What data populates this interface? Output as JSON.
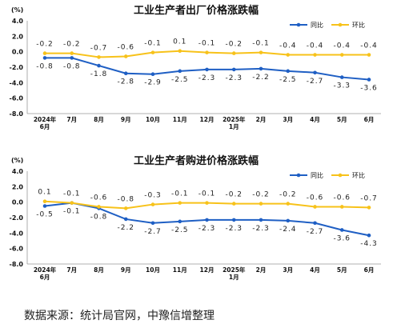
{
  "chart_data": [
    {
      "type": "line",
      "title": "工业生产者出厂价格涨跌幅",
      "unit_label": "(%)",
      "categories": [
        [
          "2024年",
          "6月"
        ],
        [
          "7月"
        ],
        [
          "8月"
        ],
        [
          "9月"
        ],
        [
          "10月"
        ],
        [
          "11月"
        ],
        [
          "12月"
        ],
        [
          "2025年",
          "1月"
        ],
        [
          "2月"
        ],
        [
          "3月"
        ],
        [
          "4月"
        ],
        [
          "5月"
        ],
        [
          "6月"
        ]
      ],
      "ylim": [
        -8.0,
        4.0
      ],
      "yticks": [
        "4.0",
        "2.0",
        "0.0",
        "-2.0",
        "-4.0",
        "-6.0",
        "-8.0"
      ],
      "series": [
        {
          "name": "同比",
          "color": "#1f5fc4",
          "values": [
            -0.8,
            -0.8,
            -1.8,
            -2.8,
            -2.9,
            -2.5,
            -2.3,
            -2.3,
            -2.2,
            -2.5,
            -2.7,
            -3.3,
            -3.6
          ],
          "labels": [
            "-0.8",
            "-0.8",
            "-1.8",
            "-2.8",
            "-2.9",
            "-2.5",
            "-2.3",
            "-2.3",
            "-2.2",
            "-2.5",
            "-2.7",
            "-3.3",
            "-3.6"
          ]
        },
        {
          "name": "环比",
          "color": "#f7c21a",
          "values": [
            -0.2,
            -0.2,
            -0.7,
            -0.6,
            -0.1,
            0.1,
            -0.1,
            -0.2,
            -0.1,
            -0.4,
            -0.4,
            -0.4,
            -0.4
          ],
          "labels": [
            "-0.2",
            "-0.2",
            "-0.7",
            "-0.6",
            "-0.1",
            "0.1",
            "-0.1",
            "-0.2",
            "-0.1",
            "-0.4",
            "-0.4",
            "-0.4",
            "-0.4"
          ]
        }
      ],
      "legend": "top-right"
    },
    {
      "type": "line",
      "title": "工业生产者购进价格涨跌幅",
      "unit_label": "(%)",
      "categories": [
        [
          "2024年",
          "6月"
        ],
        [
          "7月"
        ],
        [
          "8月"
        ],
        [
          "9月"
        ],
        [
          "10月"
        ],
        [
          "11月"
        ],
        [
          "12月"
        ],
        [
          "2025年",
          "1月"
        ],
        [
          "2月"
        ],
        [
          "3月"
        ],
        [
          "4月"
        ],
        [
          "5月"
        ],
        [
          "6月"
        ]
      ],
      "ylim": [
        -8.0,
        4.0
      ],
      "yticks": [
        "4.0",
        "2.0",
        "0.0",
        "-2.0",
        "-4.0",
        "-6.0",
        "-8.0"
      ],
      "series": [
        {
          "name": "同比",
          "color": "#1f5fc4",
          "values": [
            -0.5,
            -0.1,
            -0.8,
            -2.2,
            -2.7,
            -2.5,
            -2.3,
            -2.3,
            -2.3,
            -2.4,
            -2.7,
            -3.6,
            -4.3
          ],
          "labels": [
            "-0.5",
            "-0.1",
            "-0.8",
            "-2.2",
            "-2.7",
            "-2.5",
            "-2.3",
            "-2.3",
            "-2.3",
            "-2.4",
            "-2.7",
            "-3.6",
            "-4.3"
          ]
        },
        {
          "name": "环比",
          "color": "#f7c21a",
          "values": [
            0.1,
            -0.1,
            -0.6,
            -0.8,
            -0.3,
            -0.1,
            -0.1,
            -0.2,
            -0.2,
            -0.2,
            -0.6,
            -0.6,
            -0.7
          ],
          "labels": [
            "0.1",
            "-0.1",
            "-0.6",
            "-0.8",
            "-0.3",
            "-0.1",
            "-0.1",
            "-0.2",
            "-0.2",
            "-0.2",
            "-0.6",
            "-0.6",
            "-0.7"
          ]
        }
      ],
      "legend": "top-right"
    }
  ],
  "source_text": "数据来源：统计局官网，中豫信增整理"
}
